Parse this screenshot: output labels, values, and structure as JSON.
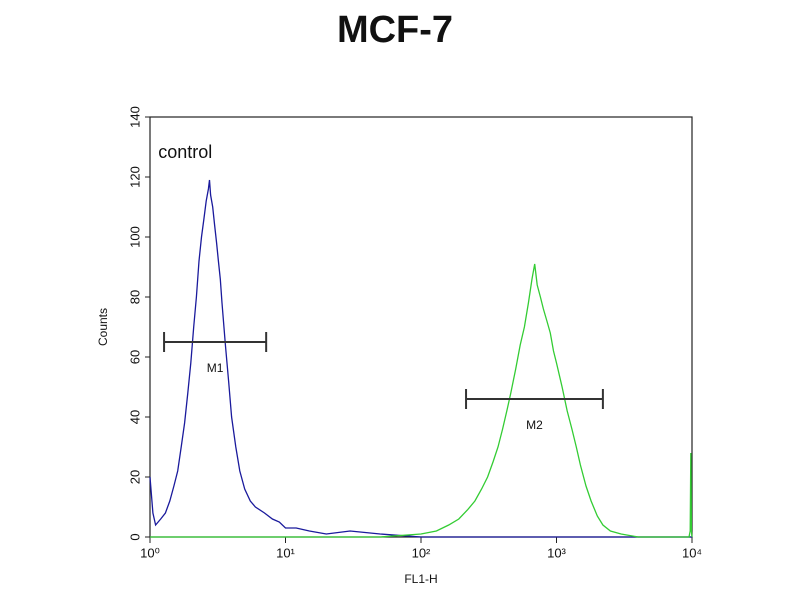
{
  "chart_data": {
    "type": "histogram-overlay",
    "title": "MCF-7",
    "x_label": "FL1-H",
    "y_label": "Counts",
    "xscale": "log",
    "xlim": [
      1,
      10000
    ],
    "xticks": [
      {
        "value": 1,
        "label": "10⁰"
      },
      {
        "value": 10,
        "label": "10¹"
      },
      {
        "value": 100,
        "label": "10²"
      },
      {
        "value": 1000,
        "label": "10³"
      },
      {
        "value": 10000,
        "label": "10⁴"
      }
    ],
    "ylim": [
      0,
      140
    ],
    "yticks": [
      0,
      20,
      40,
      60,
      80,
      100,
      120,
      140
    ],
    "annotations": [
      {
        "text": "control",
        "x": 1.15,
        "y": 128
      }
    ],
    "markers": [
      {
        "label": "M1",
        "color": "#333333",
        "range": [
          1.27,
          7.2
        ],
        "y": 65
      },
      {
        "label": "M2",
        "color": "#333333",
        "range": [
          215,
          2200
        ],
        "y": 46
      }
    ],
    "series": [
      {
        "color": "#1a1a9c",
        "x": [
          1.0,
          1.05,
          1.1,
          1.2,
          1.3,
          1.4,
          1.5,
          1.6,
          1.7,
          1.8,
          1.9,
          2.0,
          2.1,
          2.2,
          2.3,
          2.4,
          2.5,
          2.6,
          2.7,
          2.75,
          2.8,
          2.9,
          3.0,
          3.1,
          3.2,
          3.3,
          3.4,
          3.6,
          3.8,
          4.0,
          4.3,
          4.6,
          5.0,
          5.5,
          6.0,
          7.0,
          8.0,
          9.0,
          10,
          12,
          15,
          20,
          30,
          50,
          100,
          300,
          1000,
          10000
        ],
        "values": [
          20,
          8,
          4,
          6,
          8,
          12,
          17,
          22,
          30,
          38,
          48,
          58,
          70,
          80,
          92,
          100,
          106,
          112,
          116,
          119,
          114,
          110,
          104,
          98,
          92,
          86,
          78,
          64,
          52,
          40,
          30,
          22,
          16,
          12,
          10,
          8,
          6,
          5,
          3,
          3,
          2,
          1,
          2,
          1,
          0,
          0,
          0,
          0
        ]
      },
      {
        "color": "#33cc33",
        "x": [
          1,
          10,
          50,
          100,
          130,
          160,
          190,
          220,
          250,
          280,
          310,
          340,
          370,
          400,
          430,
          460,
          500,
          540,
          580,
          620,
          660,
          690,
          720,
          760,
          800,
          850,
          900,
          950,
          1000,
          1100,
          1200,
          1300,
          1400,
          1500,
          1650,
          1800,
          2000,
          2200,
          2500,
          3000,
          4000,
          6000,
          9000,
          9500,
          9700,
          9800,
          9900,
          10000
        ],
        "values": [
          0,
          0,
          0,
          1,
          2,
          4,
          6,
          9,
          12,
          16,
          20,
          25,
          30,
          36,
          42,
          48,
          56,
          64,
          70,
          78,
          86,
          91,
          84,
          80,
          76,
          72,
          68,
          62,
          58,
          50,
          42,
          36,
          30,
          24,
          17,
          12,
          7,
          4,
          2,
          1,
          0,
          0,
          0,
          0,
          2,
          28,
          2,
          0
        ]
      }
    ]
  }
}
